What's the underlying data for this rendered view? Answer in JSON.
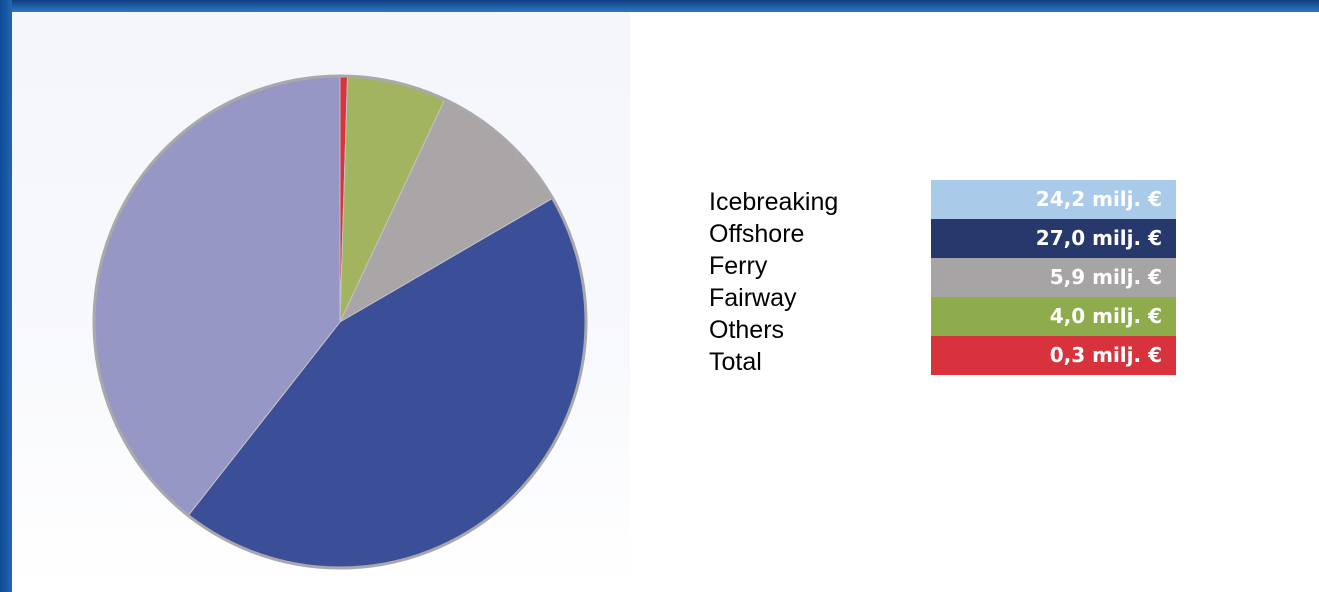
{
  "chart_data": {
    "type": "pie",
    "title": "",
    "categories": [
      "Icebreaking",
      "Offshore",
      "Ferry",
      "Fairway",
      "Others"
    ],
    "values": [
      24.2,
      27.0,
      5.9,
      4.0,
      0.3
    ],
    "unit": "milj. €",
    "slice_colors": [
      "#9797c6",
      "#3a4f98",
      "#aaa6a8",
      "#a2b460",
      "#d8333f"
    ],
    "legend": {
      "labels": [
        "Icebreaking",
        "Offshore",
        "Ferry",
        "Fairway",
        "Others",
        "Total"
      ],
      "value_labels": [
        "24,2 milj. €",
        "27,0 milj. €",
        "5,9 milj. €",
        "4,0 milj. €",
        "0,3 milj. €"
      ],
      "value_box_colors": [
        "#a9cbe9",
        "#27396c",
        "#a7a4a5",
        "#8fac4c",
        "#d8323d"
      ],
      "placement": "right"
    }
  }
}
